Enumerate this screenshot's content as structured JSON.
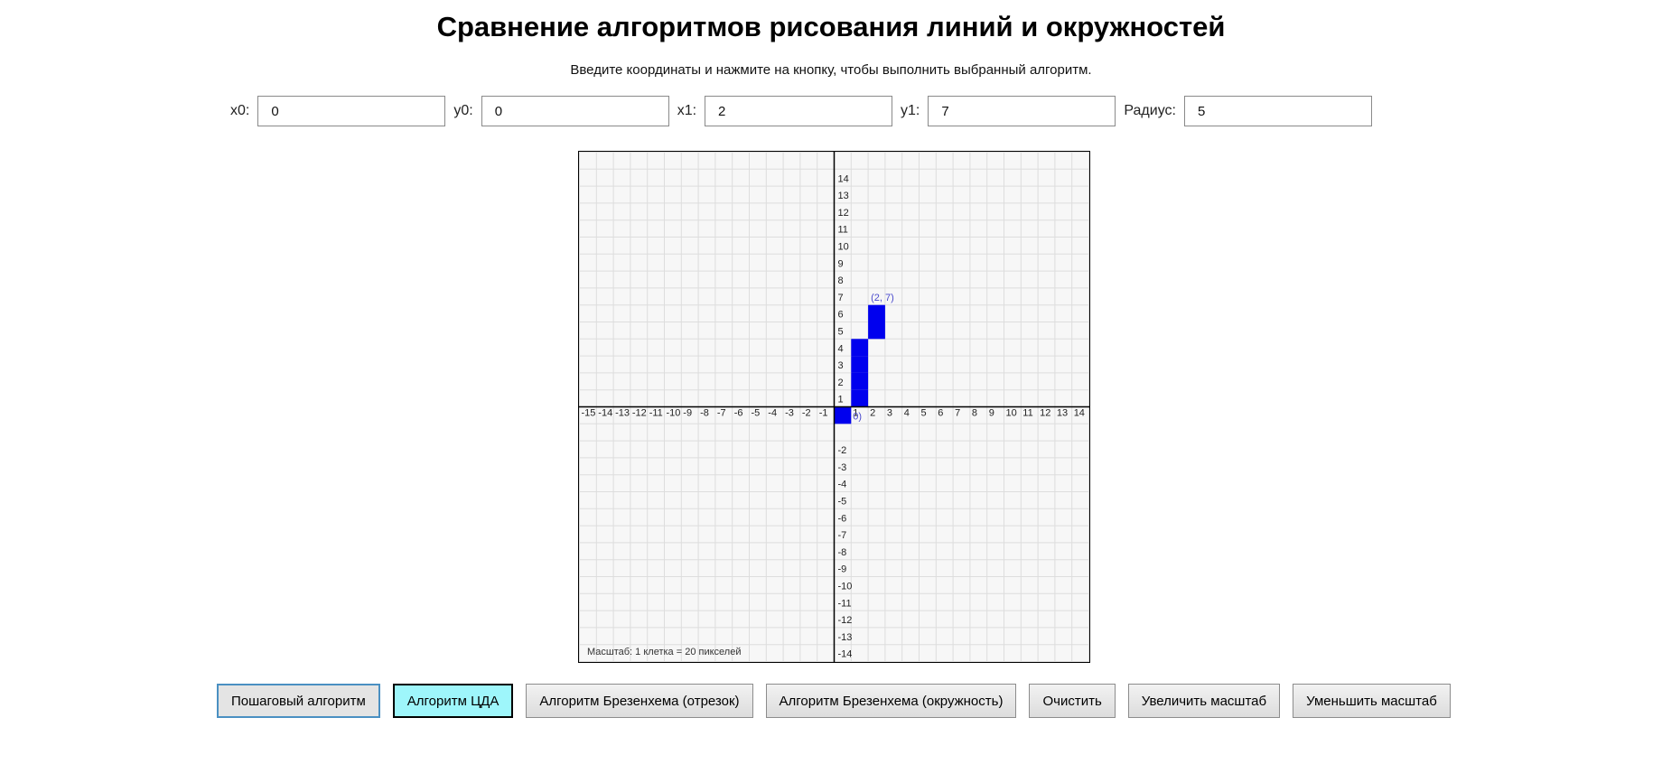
{
  "title": "Сравнение алгоритмов рисования линий и окружностей",
  "subtitle": "Введите координаты и нажмите на кнопку, чтобы выполнить выбранный алгоритм.",
  "inputs": [
    {
      "label": "x0:",
      "value": "0"
    },
    {
      "label": "y0:",
      "value": "0"
    },
    {
      "label": "x1:",
      "value": "2"
    },
    {
      "label": "y1:",
      "value": "7"
    },
    {
      "label": "Радиус:",
      "value": "5"
    }
  ],
  "grid": {
    "x_range": [
      -15,
      14
    ],
    "y_range": [
      -15,
      14
    ],
    "scale_label": "Масштаб: 1 клетка = 20 пикселей",
    "colors": {
      "background": "#f7f7f7",
      "grid_line": "#dddddd",
      "axis": "#000000",
      "pixel": "#0000ee",
      "label": "#4a4acc"
    },
    "pixels": [
      [
        0,
        0
      ],
      [
        1,
        1
      ],
      [
        1,
        2
      ],
      [
        1,
        3
      ],
      [
        1,
        4
      ],
      [
        2,
        5
      ],
      [
        2,
        6
      ]
    ],
    "start_label": "0)",
    "end_label": "(2, 7)"
  },
  "buttons": [
    {
      "label": "Пошаговый алгоритм",
      "state": "focused"
    },
    {
      "label": "Алгоритм ЦДА",
      "state": "active"
    },
    {
      "label": "Алгоритм Брезенхема (отрезок)",
      "state": "normal"
    },
    {
      "label": "Алгоритм Брезенхема (окружность)",
      "state": "normal"
    },
    {
      "label": "Очистить",
      "state": "normal"
    },
    {
      "label": "Увеличить масштаб",
      "state": "normal"
    },
    {
      "label": "Уменьшить масштаб",
      "state": "normal"
    }
  ]
}
